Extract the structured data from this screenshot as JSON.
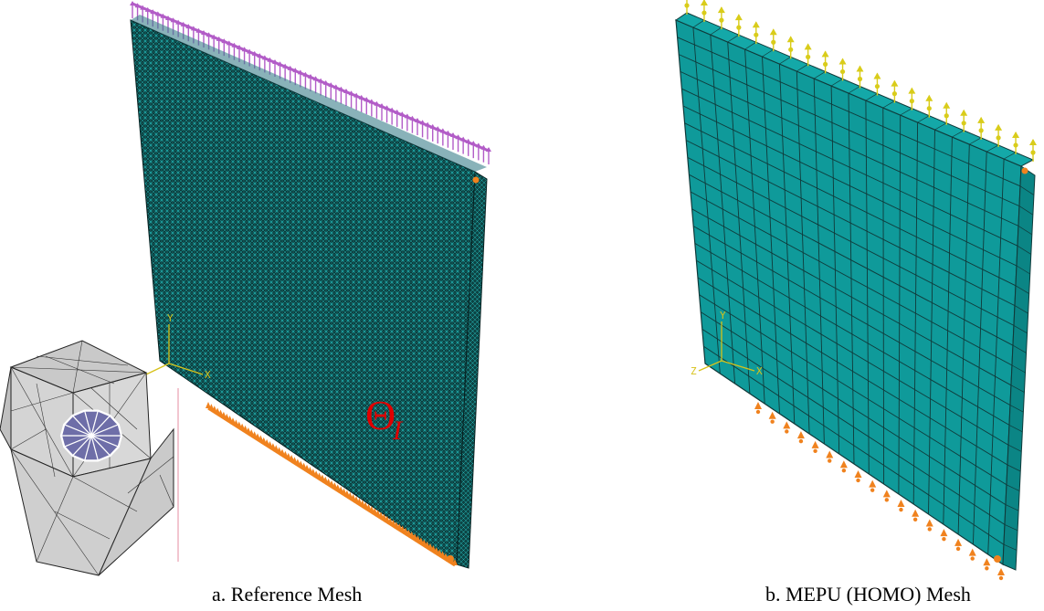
{
  "figure": {
    "panels": [
      {
        "id": "a",
        "caption": "a. Reference Mesh",
        "annotation_symbol": "Θ",
        "annotation_subscript": "I",
        "triad_axes": [
          "Y",
          "Z",
          "X"
        ]
      },
      {
        "id": "b",
        "caption": "b. MEPU (HOMO) Mesh",
        "triad_axes": [
          "Y",
          "Z",
          "X"
        ]
      }
    ]
  },
  "colors": {
    "mesh_fill": "#0f9a9a",
    "mesh_lines": "#103a3a",
    "fine_mesh_dark": "#0a3535",
    "load_arrows_a": "#b25cc7",
    "load_arrows_b": "#d9cc1a",
    "boundary_supports": "#f0821e",
    "triad": "#d7c21a",
    "annotation": "#e00000",
    "inset_cube": "#d2d2d2",
    "inset_inclusion": "#6e6ea8",
    "inset_divider": "#e8a0b0"
  }
}
